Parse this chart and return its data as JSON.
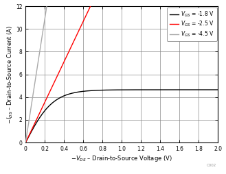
{
  "xlabel": "$-V_{DS}$ – Drain-to-Source Voltage (V)",
  "ylabel": "$-I_{DS}$ – Drain-to-Source Current (A)",
  "xlim": [
    0,
    2
  ],
  "ylim": [
    0,
    12
  ],
  "xticks": [
    0,
    0.2,
    0.4,
    0.6,
    0.8,
    1.0,
    1.2,
    1.4,
    1.6,
    1.8,
    2.0
  ],
  "yticks": [
    0,
    2,
    4,
    6,
    8,
    10,
    12
  ],
  "grid_color": "#888888",
  "background_color": "#ffffff",
  "legend_colors": [
    "#000000",
    "#ff0000",
    "#aaaaaa"
  ],
  "watermark": "C002",
  "curve1_Isat": 4.65,
  "curve1_k": 3.5,
  "curve2_slope": 17.8,
  "curve2_xmax": 0.675,
  "curve3_slope": 54.5,
  "curve3_xmax": 0.22
}
